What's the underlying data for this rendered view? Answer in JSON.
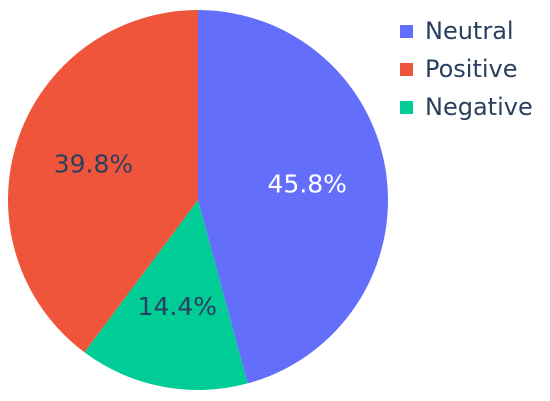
{
  "chart_data": {
    "type": "pie",
    "slices": [
      {
        "name": "Neutral",
        "value": 45.8,
        "label": "45.8%",
        "color": "#636efa",
        "label_color": "#ffffff"
      },
      {
        "name": "Negative",
        "value": 14.4,
        "label": "14.4%",
        "color": "#00cc96",
        "label_color": "#2a3f5f"
      },
      {
        "name": "Positive",
        "value": 39.8,
        "label": "39.8%",
        "color": "#ef553b",
        "label_color": "#2a3f5f"
      }
    ],
    "start_direction": "top",
    "rotation": "clockwise",
    "legend": {
      "position": "top-right",
      "items": [
        {
          "name": "Neutral",
          "color": "#636efa"
        },
        {
          "name": "Positive",
          "color": "#ef553b"
        },
        {
          "name": "Negative",
          "color": "#00cc96"
        }
      ]
    }
  }
}
